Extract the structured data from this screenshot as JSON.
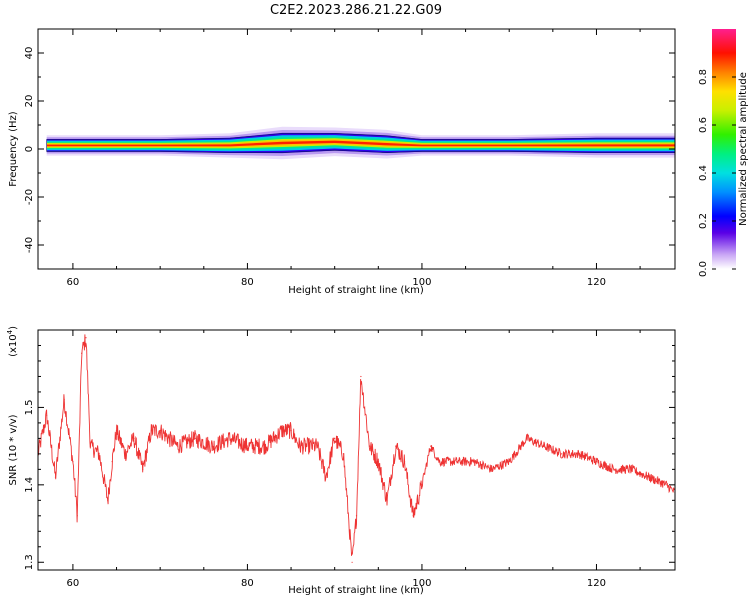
{
  "figure": {
    "title": "C2E2.2023.286.21.22.G09"
  },
  "chart_data": [
    {
      "type": "heatmap",
      "title": "C2E2.2023.286.21.22.G09",
      "xlabel": "Height of straight line (km)",
      "ylabel": "Frequency (Hz)",
      "xlim": [
        56,
        129
      ],
      "ylim": [
        -50,
        50
      ],
      "xticks": [
        60,
        80,
        100,
        120
      ],
      "yticks": [
        -40,
        -20,
        0,
        20,
        40
      ],
      "colorbar": {
        "label": "Normalized spectral amplitude",
        "range": [
          0.0,
          1.0
        ],
        "ticks": [
          0.0,
          0.2,
          0.4,
          0.6,
          0.8
        ]
      },
      "ridge": {
        "frequency_hz": 1.5,
        "profile": [
          {
            "height_km": 57,
            "freq_hz": 1.5,
            "halfwidth_hz": 2.5
          },
          {
            "height_km": 62,
            "freq_hz": 1.5,
            "halfwidth_hz": 2.5
          },
          {
            "height_km": 70,
            "freq_hz": 1.5,
            "halfwidth_hz": 2.5
          },
          {
            "height_km": 78,
            "freq_hz": 1.5,
            "halfwidth_hz": 3
          },
          {
            "height_km": 84,
            "freq_hz": 2.5,
            "halfwidth_hz": 4
          },
          {
            "height_km": 90,
            "freq_hz": 3,
            "halfwidth_hz": 3.5
          },
          {
            "height_km": 96,
            "freq_hz": 2,
            "halfwidth_hz": 3.5
          },
          {
            "height_km": 100,
            "freq_hz": 1.5,
            "halfwidth_hz": 2.5
          },
          {
            "height_km": 110,
            "freq_hz": 1.5,
            "halfwidth_hz": 2.5
          },
          {
            "height_km": 120,
            "freq_hz": 1.5,
            "halfwidth_hz": 3
          },
          {
            "height_km": 129,
            "freq_hz": 1.5,
            "halfwidth_hz": 3
          }
        ]
      },
      "grid": false
    },
    {
      "type": "line",
      "xlabel": "Height of straight line (km)",
      "ylabel": "SNR (10 * v/v)",
      "y_multiplier_label": "(x10",
      "y_multiplier_exponent": "4",
      "xlim": [
        56,
        129
      ],
      "ylim": [
        1.29,
        1.6
      ],
      "xticks": [
        60,
        80,
        100,
        120
      ],
      "yticks": [
        1.3,
        1.4,
        1.5
      ],
      "series": [
        {
          "color": "#ee3333",
          "x": [
            56,
            57,
            58,
            59,
            60,
            60.5,
            61,
            61.5,
            62,
            63,
            64,
            64.5,
            65,
            66,
            67,
            68,
            69,
            70,
            72,
            74,
            76,
            78,
            80,
            82,
            84,
            85,
            86,
            88,
            89,
            90,
            91,
            92,
            92.5,
            93,
            94,
            95,
            96,
            97,
            98,
            99,
            100,
            101,
            102,
            104,
            106,
            108,
            110,
            112,
            114,
            116,
            118,
            120,
            122,
            124,
            126,
            128,
            129
          ],
          "y": [
            1.44,
            1.49,
            1.41,
            1.51,
            1.43,
            1.36,
            1.57,
            1.59,
            1.45,
            1.44,
            1.38,
            1.43,
            1.47,
            1.44,
            1.46,
            1.42,
            1.47,
            1.47,
            1.45,
            1.46,
            1.45,
            1.46,
            1.45,
            1.45,
            1.47,
            1.47,
            1.45,
            1.45,
            1.41,
            1.46,
            1.44,
            1.3,
            1.36,
            1.54,
            1.45,
            1.43,
            1.38,
            1.45,
            1.43,
            1.36,
            1.4,
            1.45,
            1.43,
            1.43,
            1.43,
            1.42,
            1.43,
            1.46,
            1.45,
            1.44,
            1.44,
            1.43,
            1.42,
            1.42,
            1.41,
            1.4,
            1.39
          ]
        }
      ],
      "grid": false
    }
  ]
}
